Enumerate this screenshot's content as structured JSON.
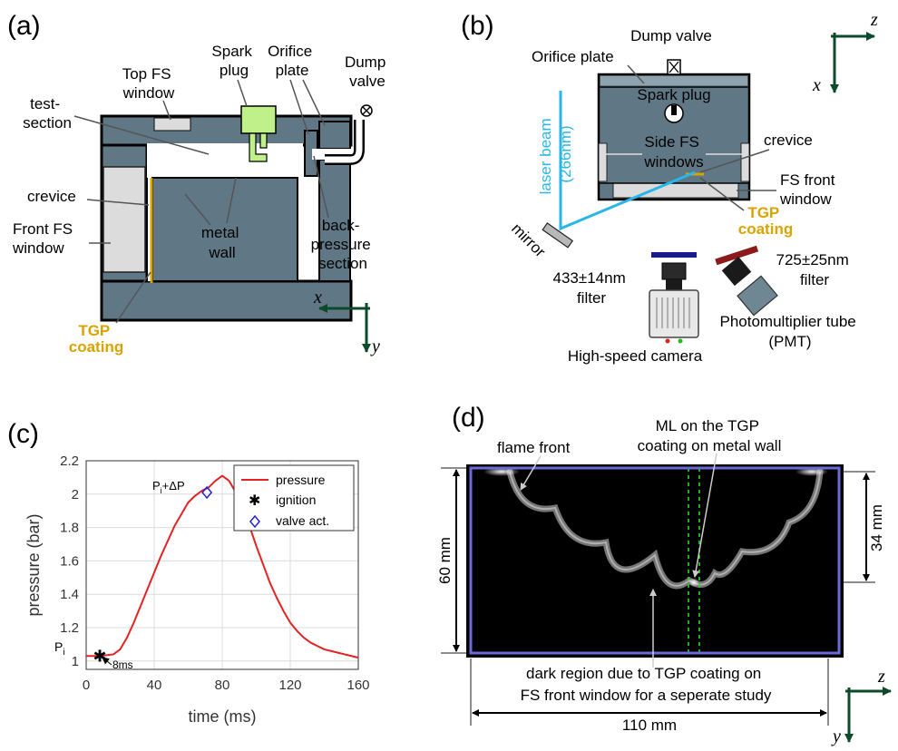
{
  "panel_a": {
    "panel_label": "(a)",
    "top_fs_window": [
      "Top FS",
      "window"
    ],
    "spark_plug": [
      "Spark",
      "plug"
    ],
    "orifice_plate": [
      "Orifice",
      "plate"
    ],
    "dump_valve": [
      "Dump",
      "valve"
    ],
    "test_section": [
      "test-",
      "section"
    ],
    "crevice": "crevice",
    "front_fs_window": [
      "Front FS",
      "window"
    ],
    "metal_wall": [
      "metal",
      "wall"
    ],
    "back_pressure": [
      "back-",
      "pressure",
      "section"
    ],
    "tgp_coating": [
      "TGP",
      "coating"
    ],
    "axis_x": "x",
    "axis_y": "y"
  },
  "panel_b": {
    "panel_label": "(b)",
    "dump_valve": "Dump valve",
    "orifice_plate": "Orifice plate",
    "spark_plug": "Spark plug",
    "laser_beam": [
      "laser beam",
      "(266nm)"
    ],
    "side_fs_windows": [
      "Side FS",
      "windows"
    ],
    "crevice": "crevice",
    "fs_front_window": [
      "FS front",
      "window"
    ],
    "tgp_coating": [
      "TGP",
      "coating"
    ],
    "mirror": "mirror",
    "filter_433": [
      "433±14nm",
      "filter"
    ],
    "filter_725": [
      "725±25nm",
      "filter"
    ],
    "pmt": [
      "Photomultiplier tube",
      "(PMT)"
    ],
    "camera": "High-speed camera",
    "axis_z": "z",
    "axis_x": "x",
    "colors": {
      "laser": "#29b6e8",
      "tgp": "#d9a400",
      "filter_blue": "#1a1a8c",
      "filter_red": "#8c1a1a"
    }
  },
  "panel_c": {
    "panel_label": "(c)",
    "legend": [
      "pressure",
      "ignition",
      "valve act."
    ],
    "annot_pi": "P",
    "annot_pi_sub": "i",
    "annot_dp": "P",
    "annot_dp_sub": "i",
    "annot_dp_rest": "+ΔP",
    "annot_8ms": "8ms",
    "chart_data": {
      "type": "line",
      "xlabel": "time (ms)",
      "ylabel": "pressure (bar)",
      "xlim": [
        0,
        160
      ],
      "ylim": [
        0.95,
        2.2
      ],
      "xticks": [
        0,
        40,
        80,
        120,
        160
      ],
      "yticks": [
        1,
        1.2,
        1.4,
        1.6,
        1.8,
        2,
        2.2
      ],
      "grid": true,
      "legend_position": "top-right",
      "series": [
        {
          "name": "pressure",
          "color": "#e52222",
          "x": [
            0,
            8,
            16,
            20,
            24,
            28,
            32,
            36,
            40,
            44,
            48,
            52,
            56,
            60,
            64,
            68,
            72,
            76,
            80,
            84,
            88,
            92,
            96,
            100,
            104,
            108,
            112,
            116,
            120,
            124,
            128,
            132,
            136,
            140,
            144,
            148,
            152,
            156,
            160
          ],
          "y": [
            1.03,
            1.03,
            1.04,
            1.07,
            1.14,
            1.23,
            1.33,
            1.43,
            1.53,
            1.63,
            1.72,
            1.81,
            1.88,
            1.95,
            1.99,
            2.02,
            2.04,
            2.08,
            2.11,
            2.08,
            2.01,
            1.92,
            1.81,
            1.69,
            1.58,
            1.47,
            1.38,
            1.3,
            1.23,
            1.18,
            1.14,
            1.11,
            1.09,
            1.07,
            1.06,
            1.05,
            1.04,
            1.03,
            1.02
          ]
        }
      ],
      "markers": [
        {
          "name": "ignition",
          "symbol": "asterisk",
          "color": "#000000",
          "x": 8,
          "y": 1.03
        },
        {
          "name": "valve act.",
          "symbol": "diamond",
          "color": "#2222cc",
          "x": 71,
          "y": 2.01
        }
      ]
    }
  },
  "panel_d": {
    "panel_label": "(d)",
    "flame_front": "flame front",
    "ml_label": [
      "ML on  the TGP",
      "coating on metal wall"
    ],
    "dim_60": "60 mm",
    "dim_34": "34 mm",
    "dim_110": "110 mm",
    "dark_region": [
      "dark region due to TGP coating on",
      "FS front window for a seperate study"
    ],
    "axis_z": "z",
    "axis_y": "y",
    "colors": {
      "frame": "#6a6ad8",
      "guide": "#22dd22"
    }
  }
}
